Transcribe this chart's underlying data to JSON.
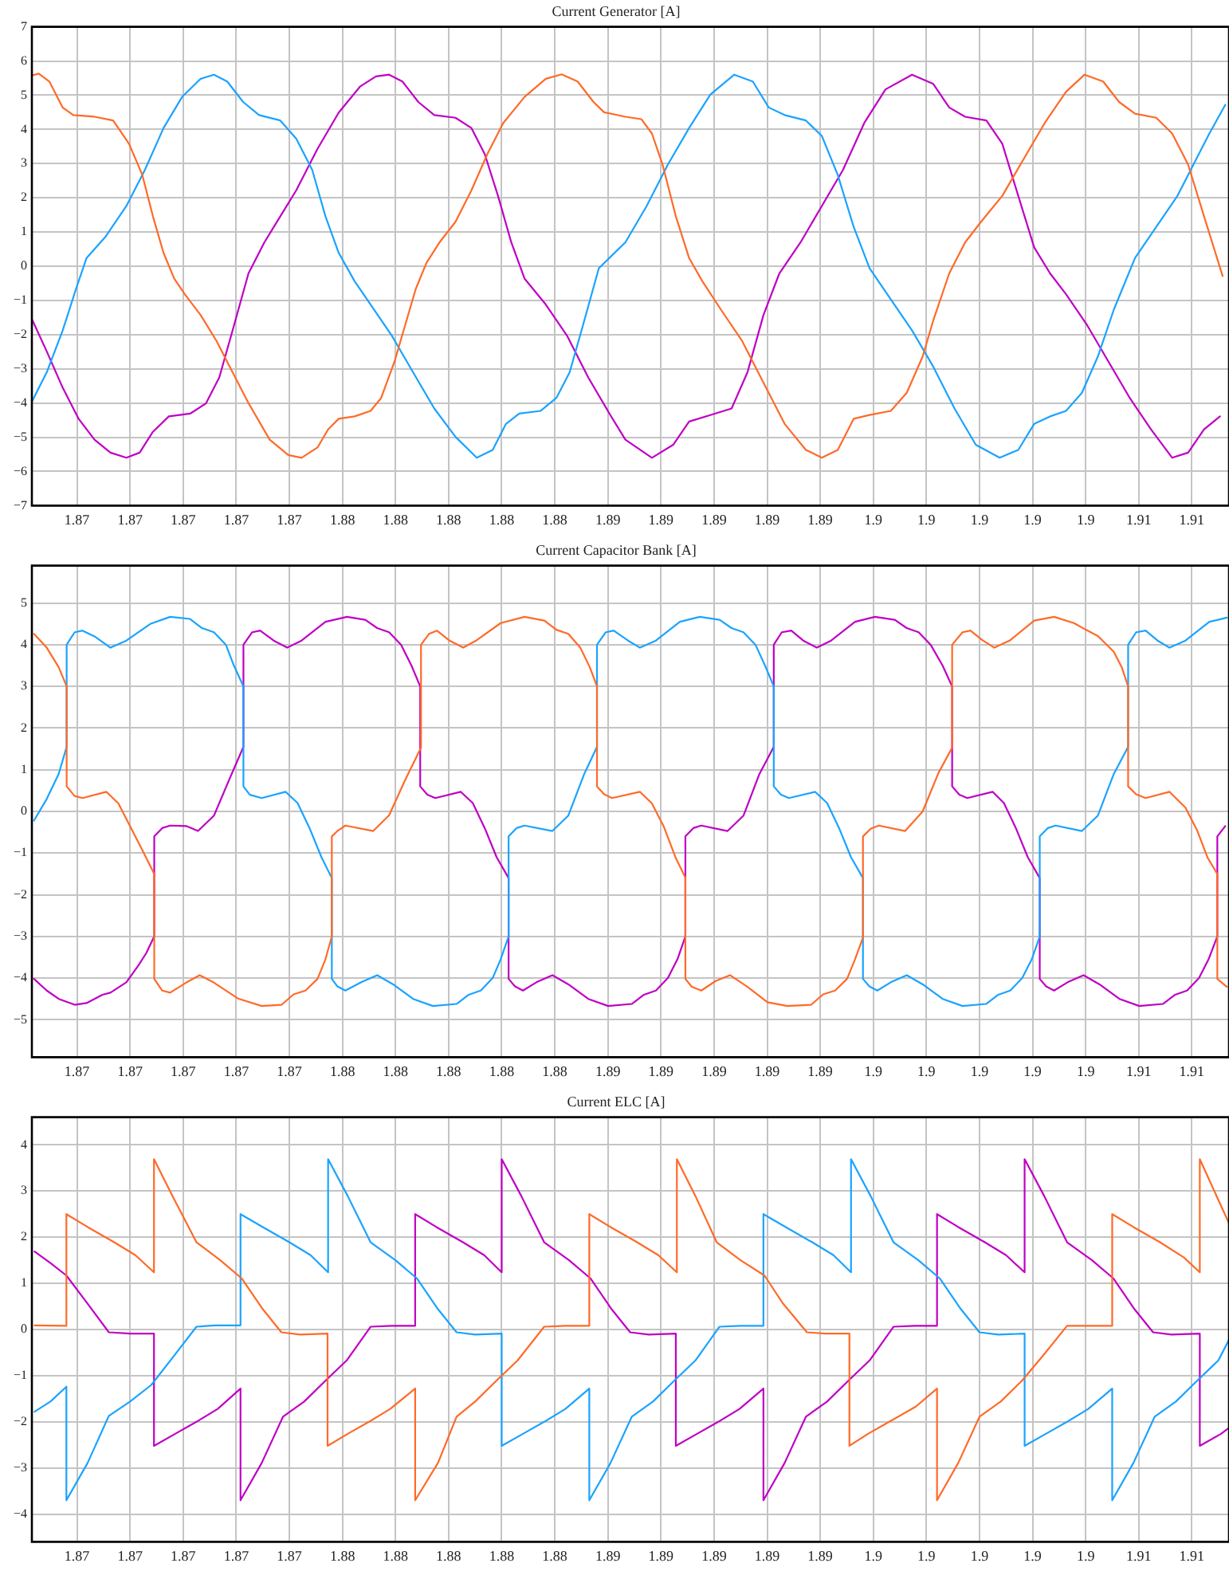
{
  "chart_data": [
    {
      "type": "line",
      "title": "Current Generator [A]",
      "xlim": [
        1.8643,
        1.9094
      ],
      "ylim": [
        -7,
        7
      ],
      "grid": true,
      "xticks": [
        {
          "value": 1.866,
          "label": "1.87"
        },
        {
          "value": 1.868,
          "label": "1.87"
        },
        {
          "value": 1.87,
          "label": "1.87"
        },
        {
          "value": 1.872,
          "label": "1.87"
        },
        {
          "value": 1.874,
          "label": "1.87"
        },
        {
          "value": 1.876,
          "label": "1.88"
        },
        {
          "value": 1.878,
          "label": "1.88"
        },
        {
          "value": 1.88,
          "label": "1.88"
        },
        {
          "value": 1.882,
          "label": "1.88"
        },
        {
          "value": 1.884,
          "label": "1.88"
        },
        {
          "value": 1.886,
          "label": "1.89"
        },
        {
          "value": 1.888,
          "label": "1.89"
        },
        {
          "value": 1.89,
          "label": "1.89"
        },
        {
          "value": 1.892,
          "label": "1.89"
        },
        {
          "value": 1.894,
          "label": "1.89"
        },
        {
          "value": 1.896,
          "label": "1.9"
        },
        {
          "value": 1.898,
          "label": "1.9"
        },
        {
          "value": 1.9,
          "label": "1.9"
        },
        {
          "value": 1.902,
          "label": "1.9"
        },
        {
          "value": 1.904,
          "label": "1.9"
        },
        {
          "value": 1.906,
          "label": "1.91"
        },
        {
          "value": 1.908,
          "label": "1.91"
        }
      ],
      "yticks": [
        {
          "value": -7,
          "label": "−7"
        },
        {
          "value": -6,
          "label": "−6"
        },
        {
          "value": -5,
          "label": "−5"
        },
        {
          "value": -4,
          "label": "−4"
        },
        {
          "value": -3,
          "label": "−3"
        },
        {
          "value": -2,
          "label": "−2"
        },
        {
          "value": -1,
          "label": "−1"
        },
        0,
        1,
        2,
        3,
        4,
        5,
        6,
        7
      ],
      "series": [
        {
          "color": "#ff6a28",
          "x": [
            1.86432,
            1.86456,
            1.86496,
            1.86546,
            1.86586,
            1.86666,
            1.86736,
            1.86796,
            1.86846,
            1.86886,
            1.86926,
            1.86966,
            1.87006,
            1.87066,
            1.87126,
            1.87186,
            1.87246,
            1.87326,
            1.87396,
            1.87446,
            1.87506,
            1.87546,
            1.87586,
            1.87646,
            1.87706,
            1.87746,
            1.87796,
            1.87836,
            1.87876,
            1.87916,
            1.87966,
            1.88026,
            1.88086,
            1.88146,
            1.88206,
            1.88286,
            1.88366,
            1.88426,
            1.88486,
            1.88546,
            1.88586,
            1.88666,
            1.88726,
            1.88766,
            1.88806,
            1.88856,
            1.88906,
            1.88956,
            1.89026,
            1.89106,
            1.89186,
            1.89266,
            1.89346,
            1.89406,
            1.89466,
            1.89526,
            1.89586,
            1.89666,
            1.89726,
            1.89786,
            1.89826,
            1.89886,
            1.89946,
            1.90006,
            1.90086,
            1.90166,
            1.90246,
            1.90326,
            1.90396,
            1.90466,
            1.90526,
            1.90586,
            1.90666,
            1.90726,
            1.90786,
            1.90846,
            1.90916
          ],
          "values": [
            5.58,
            5.63,
            5.4,
            4.64,
            4.42,
            4.37,
            4.26,
            3.58,
            2.67,
            1.46,
            0.39,
            -0.36,
            -0.82,
            -1.43,
            -2.19,
            -3.1,
            -4.0,
            -5.07,
            -5.52,
            -5.6,
            -5.3,
            -4.77,
            -4.46,
            -4.39,
            -4.23,
            -3.85,
            -2.79,
            -1.73,
            -0.67,
            0.09,
            0.7,
            1.3,
            2.22,
            3.28,
            4.19,
            4.95,
            5.48,
            5.61,
            5.4,
            4.8,
            4.5,
            4.37,
            4.3,
            3.88,
            2.97,
            1.46,
            0.24,
            -0.44,
            -1.27,
            -2.19,
            -3.4,
            -4.61,
            -5.37,
            -5.6,
            -5.37,
            -4.46,
            -4.35,
            -4.23,
            -3.7,
            -2.64,
            -1.58,
            -0.21,
            0.7,
            1.3,
            2.06,
            3.13,
            4.19,
            5.1,
            5.6,
            5.4,
            4.8,
            4.46,
            4.34,
            3.88,
            2.97,
            1.46,
            -0.29
          ]
        },
        {
          "color": "#1aa3ff",
          "x": [
            1.86432,
            1.86486,
            1.86546,
            1.86596,
            1.86636,
            1.86706,
            1.86786,
            1.86856,
            1.86926,
            1.86996,
            1.87066,
            1.87116,
            1.87166,
            1.87226,
            1.87286,
            1.87366,
            1.87426,
            1.87486,
            1.87536,
            1.87586,
            1.87646,
            1.87706,
            1.87786,
            1.87866,
            1.87946,
            1.88026,
            1.88106,
            1.88166,
            1.88216,
            1.88266,
            1.88346,
            1.88406,
            1.88456,
            1.88506,
            1.88566,
            1.88666,
            1.88746,
            1.88826,
            1.88906,
            1.88986,
            1.89076,
            1.89146,
            1.89206,
            1.89266,
            1.89346,
            1.89406,
            1.89466,
            1.89526,
            1.89586,
            1.89666,
            1.89746,
            1.89826,
            1.89906,
            1.89986,
            1.90076,
            1.90146,
            1.90206,
            1.90266,
            1.90326,
            1.90386,
            1.90446,
            1.90506,
            1.90586,
            1.90666,
            1.90746,
            1.90806,
            1.90866,
            1.90926
          ],
          "values": [
            -3.93,
            -3.1,
            -1.88,
            -0.67,
            0.24,
            0.85,
            1.76,
            2.82,
            4.04,
            4.95,
            5.48,
            5.6,
            5.4,
            4.8,
            4.42,
            4.26,
            3.73,
            2.82,
            1.46,
            0.39,
            -0.44,
            -1.12,
            -2.03,
            -3.1,
            -4.16,
            -4.99,
            -5.6,
            -5.37,
            -4.61,
            -4.31,
            -4.23,
            -3.85,
            -3.1,
            -1.73,
            -0.06,
            0.7,
            1.76,
            2.97,
            4.04,
            5.02,
            5.6,
            5.4,
            4.64,
            4.42,
            4.26,
            3.81,
            2.67,
            1.15,
            -0.06,
            -0.97,
            -1.88,
            -2.94,
            -4.16,
            -5.22,
            -5.6,
            -5.37,
            -4.61,
            -4.39,
            -4.23,
            -3.7,
            -2.64,
            -1.27,
            0.24,
            1.15,
            2.06,
            2.97,
            3.88,
            4.72
          ]
        },
        {
          "color": "#bf00c4",
          "x": [
            1.86432,
            1.86486,
            1.86546,
            1.86606,
            1.86666,
            1.86726,
            1.86786,
            1.86836,
            1.86886,
            1.86946,
            1.87026,
            1.87086,
            1.87136,
            1.87186,
            1.87246,
            1.87306,
            1.87366,
            1.87426,
            1.87506,
            1.87586,
            1.87666,
            1.87726,
            1.87776,
            1.87826,
            1.87886,
            1.87946,
            1.88026,
            1.88086,
            1.88136,
            1.88186,
            1.88236,
            1.88286,
            1.88366,
            1.88446,
            1.88526,
            1.88606,
            1.88666,
            1.88766,
            1.88846,
            1.88906,
            1.88986,
            1.89066,
            1.89126,
            1.89186,
            1.89246,
            1.89326,
            1.89406,
            1.89486,
            1.89566,
            1.89646,
            1.89746,
            1.89826,
            1.89886,
            1.89946,
            1.90026,
            1.90086,
            1.90146,
            1.90206,
            1.90266,
            1.90326,
            1.90406,
            1.90486,
            1.90566,
            1.90646,
            1.90726,
            1.90786,
            1.90846,
            1.90906
          ],
          "values": [
            -1.58,
            -2.49,
            -3.55,
            -4.46,
            -5.07,
            -5.45,
            -5.6,
            -5.45,
            -4.84,
            -4.39,
            -4.31,
            -4.01,
            -3.25,
            -1.88,
            -0.21,
            0.7,
            1.46,
            2.22,
            3.43,
            4.49,
            5.25,
            5.55,
            5.6,
            5.4,
            4.8,
            4.42,
            4.34,
            4.04,
            3.28,
            2.06,
            0.7,
            -0.36,
            -1.12,
            -2.03,
            -3.25,
            -4.31,
            -5.07,
            -5.6,
            -5.22,
            -4.54,
            -4.35,
            -4.16,
            -3.1,
            -1.43,
            -0.21,
            0.7,
            1.76,
            2.82,
            4.19,
            5.17,
            5.6,
            5.33,
            4.64,
            4.37,
            4.26,
            3.58,
            2.06,
            0.55,
            -0.21,
            -0.82,
            -1.73,
            -2.79,
            -3.85,
            -4.77,
            -5.6,
            -5.45,
            -4.77,
            -4.39
          ]
        }
      ]
    },
    {
      "type": "line",
      "title": "Current Capacitor Bank [A]",
      "xlim": [
        1.8643,
        1.9094
      ],
      "ylim": [
        -5.9,
        5.9
      ],
      "grid": true,
      "xticks": [
        {
          "value": 1.866,
          "label": "1.87"
        },
        {
          "value": 1.868,
          "label": "1.87"
        },
        {
          "value": 1.87,
          "label": "1.87"
        },
        {
          "value": 1.872,
          "label": "1.87"
        },
        {
          "value": 1.874,
          "label": "1.87"
        },
        {
          "value": 1.876,
          "label": "1.88"
        },
        {
          "value": 1.878,
          "label": "1.88"
        },
        {
          "value": 1.88,
          "label": "1.88"
        },
        {
          "value": 1.882,
          "label": "1.88"
        },
        {
          "value": 1.884,
          "label": "1.88"
        },
        {
          "value": 1.886,
          "label": "1.89"
        },
        {
          "value": 1.888,
          "label": "1.89"
        },
        {
          "value": 1.89,
          "label": "1.89"
        },
        {
          "value": 1.892,
          "label": "1.89"
        },
        {
          "value": 1.894,
          "label": "1.89"
        },
        {
          "value": 1.896,
          "label": "1.9"
        },
        {
          "value": 1.898,
          "label": "1.9"
        },
        {
          "value": 1.9,
          "label": "1.9"
        },
        {
          "value": 1.902,
          "label": "1.9"
        },
        {
          "value": 1.904,
          "label": "1.9"
        },
        {
          "value": 1.906,
          "label": "1.91"
        },
        {
          "value": 1.908,
          "label": "1.91"
        }
      ],
      "yticks": [
        {
          "value": -5,
          "label": "−5"
        },
        {
          "value": -4,
          "label": "−4"
        },
        {
          "value": -3,
          "label": "−3"
        },
        {
          "value": -2,
          "label": "−2"
        },
        {
          "value": -1,
          "label": "−1"
        },
        0,
        1,
        2,
        3,
        4,
        5
      ],
      "series": [
        {
          "color": "#ff6a28",
          "x": [
            1.86438,
            1.86486,
            1.86531,
            1.86561,
            1.86561,
            1.86591,
            1.86621,
            1.86711,
            1.86756,
            1.86801,
            1.86846,
            1.86891,
            1.86891,
            1.86921,
            1.86951,
            1.87011,
            1.87062,
            1.87116,
            1.87206,
            1.87296,
            1.87371,
            1.87416,
            1.87461,
            1.87506,
            1.87536,
            1.8756,
            1.8756,
            1.87581,
            1.87611,
            1.87716,
            1.87776,
            1.87836,
            1.87896,
            1.87896,
            1.87926,
            1.87956,
            1.88001,
            1.88055,
            1.88106,
            1.88196,
            1.88286,
            1.88361,
            1.88406,
            1.88451,
            1.88496,
            1.88532,
            1.88559,
            1.88559,
            1.88586,
            1.88616,
            1.88721,
            1.88766,
            1.88811,
            1.88856,
            1.88892,
            1.88892,
            1.88916,
            1.88952,
            1.89006,
            1.8906,
            1.89126,
            1.89201,
            1.89276,
            1.89366,
            1.89411,
            1.89456,
            1.89501,
            1.89531,
            1.89561,
            1.89561,
            1.89591,
            1.89621,
            1.8972,
            1.89786,
            1.89846,
            1.89897,
            1.89897,
            1.89936,
            1.89966,
            1.90011,
            1.90056,
            1.90116,
            1.90206,
            1.90281,
            1.90356,
            1.90401,
            1.90446,
            1.90506,
            1.90536,
            1.9056,
            1.9056,
            1.9059,
            1.90626,
            1.90716,
            1.90776,
            1.90821,
            1.9086,
            1.90896,
            1.90896,
            1.90932
          ],
          "values": [
            4.26,
            3.93,
            3.46,
            3.0,
            0.6,
            0.37,
            0.32,
            0.47,
            0.19,
            -0.37,
            -0.93,
            -1.5,
            -4.02,
            -4.3,
            -4.35,
            -4.11,
            -3.93,
            -4.11,
            -4.49,
            -4.67,
            -4.64,
            -4.39,
            -4.3,
            -4.02,
            -3.55,
            -3.0,
            -0.6,
            -0.47,
            -0.34,
            -0.47,
            -0.09,
            0.75,
            1.53,
            4.0,
            4.26,
            4.34,
            4.11,
            3.93,
            4.11,
            4.52,
            4.67,
            4.58,
            4.36,
            4.26,
            3.93,
            3.46,
            3.0,
            0.6,
            0.41,
            0.32,
            0.47,
            0.19,
            -0.37,
            -1.12,
            -1.59,
            -4.02,
            -4.21,
            -4.3,
            -4.07,
            -3.93,
            -4.21,
            -4.58,
            -4.67,
            -4.64,
            -4.39,
            -4.3,
            -4.02,
            -3.55,
            -3.03,
            -0.6,
            -0.41,
            -0.34,
            -0.47,
            0.0,
            0.93,
            1.53,
            4.0,
            4.3,
            4.34,
            4.11,
            3.93,
            4.11,
            4.58,
            4.67,
            4.52,
            4.36,
            4.21,
            3.83,
            3.46,
            3.0,
            0.6,
            0.41,
            0.32,
            0.47,
            0.09,
            -0.47,
            -1.12,
            -1.5,
            -4.02,
            -4.21
          ]
        },
        {
          "color": "#1aa3ff",
          "x": [
            1.86438,
            1.86486,
            1.86531,
            1.86561,
            1.86561,
            1.86591,
            1.86621,
            1.86666,
            1.86726,
            1.86786,
            1.86876,
            1.86951,
            1.87026,
            1.87071,
            1.87116,
            1.87161,
            1.87191,
            1.87227,
            1.87227,
            1.87251,
            1.87296,
            1.87386,
            1.87431,
            1.87476,
            1.87521,
            1.8756,
            1.8756,
            1.87581,
            1.87611,
            1.87671,
            1.87731,
            1.87791,
            1.87866,
            1.87941,
            1.88031,
            1.88076,
            1.88121,
            1.88166,
            1.88196,
            1.88226,
            1.88226,
            1.88256,
            1.88286,
            1.88391,
            1.88451,
            1.88511,
            1.88559,
            1.88559,
            1.88592,
            1.88622,
            1.88676,
            1.88721,
            1.88781,
            1.88871,
            1.88946,
            1.89021,
            1.89066,
            1.89111,
            1.89156,
            1.89192,
            1.89225,
            1.89225,
            1.89252,
            1.89282,
            1.89381,
            1.89426,
            1.89471,
            1.89516,
            1.89561,
            1.89561,
            1.89585,
            1.89615,
            1.89666,
            1.89726,
            1.89786,
            1.89861,
            1.89936,
            1.90026,
            1.90071,
            1.90116,
            1.90161,
            1.90197,
            1.90227,
            1.90227,
            1.90257,
            1.90287,
            1.90386,
            1.90446,
            1.90506,
            1.9056,
            1.9056,
            1.9059,
            1.90626,
            1.90671,
            1.90716,
            1.90776,
            1.90866,
            1.90932
          ],
          "values": [
            -0.22,
            0.3,
            0.9,
            1.55,
            4.0,
            4.3,
            4.34,
            4.2,
            3.93,
            4.1,
            4.5,
            4.67,
            4.62,
            4.4,
            4.3,
            4.0,
            3.5,
            3.0,
            0.6,
            0.4,
            0.32,
            0.47,
            0.2,
            -0.4,
            -1.1,
            -1.6,
            -4.02,
            -4.2,
            -4.3,
            -4.1,
            -3.93,
            -4.15,
            -4.5,
            -4.67,
            -4.62,
            -4.4,
            -4.3,
            -4.0,
            -3.55,
            -3.0,
            -0.6,
            -0.4,
            -0.34,
            -0.47,
            -0.1,
            0.9,
            1.55,
            4.0,
            4.3,
            4.34,
            4.1,
            3.93,
            4.1,
            4.55,
            4.67,
            4.6,
            4.4,
            4.3,
            4.0,
            3.5,
            3.0,
            0.6,
            0.4,
            0.32,
            0.47,
            0.2,
            -0.4,
            -1.1,
            -1.6,
            -4.02,
            -4.2,
            -4.3,
            -4.1,
            -3.93,
            -4.15,
            -4.5,
            -4.67,
            -4.62,
            -4.4,
            -4.3,
            -4.0,
            -3.55,
            -3.0,
            -0.6,
            -0.4,
            -0.34,
            -0.47,
            -0.1,
            0.9,
            1.55,
            4.0,
            4.3,
            4.34,
            4.1,
            3.93,
            4.1,
            4.55,
            4.65
          ]
        },
        {
          "color": "#bf00c4",
          "x": [
            1.86438,
            1.86486,
            1.86531,
            1.86591,
            1.86636,
            1.86696,
            1.86726,
            1.86786,
            1.86831,
            1.86861,
            1.86891,
            1.86891,
            1.86921,
            1.86951,
            1.87011,
            1.87056,
            1.87116,
            1.87176,
            1.87227,
            1.87227,
            1.8726,
            1.8729,
            1.87341,
            1.87392,
            1.87446,
            1.87536,
            1.87617,
            1.87686,
            1.87731,
            1.87776,
            1.87821,
            1.8786,
            1.87893,
            1.87893,
            1.8792,
            1.8795,
            1.88046,
            1.88091,
            1.88136,
            1.88181,
            1.88226,
            1.88226,
            1.8825,
            1.8828,
            1.88331,
            1.88391,
            1.88451,
            1.88526,
            1.88601,
            1.88691,
            1.88736,
            1.88781,
            1.88826,
            1.88862,
            1.88892,
            1.88892,
            1.88922,
            1.88952,
            1.89051,
            1.89111,
            1.89171,
            1.89225,
            1.89225,
            1.89255,
            1.89291,
            1.89336,
            1.89387,
            1.89441,
            1.89531,
            1.89606,
            1.89681,
            1.89726,
            1.89771,
            1.89816,
            1.89861,
            1.89897,
            1.89897,
            1.89924,
            1.89954,
            1.9005,
            1.90092,
            1.90137,
            1.90182,
            1.90227,
            1.90227,
            1.90251,
            1.90281,
            1.90332,
            1.90392,
            1.90452,
            1.90527,
            1.90602,
            1.90692,
            1.90737,
            1.90782,
            1.90827,
            1.90863,
            1.90896,
            1.90896,
            1.90926
          ],
          "values": [
            -4.02,
            -4.3,
            -4.5,
            -4.64,
            -4.6,
            -4.4,
            -4.35,
            -4.1,
            -3.7,
            -3.4,
            -3.0,
            -0.6,
            -0.4,
            -0.34,
            -0.35,
            -0.47,
            -0.1,
            0.8,
            1.55,
            4.0,
            4.3,
            4.34,
            4.1,
            3.93,
            4.1,
            4.55,
            4.67,
            4.6,
            4.4,
            4.3,
            4.0,
            3.5,
            3.0,
            0.6,
            0.4,
            0.32,
            0.47,
            0.2,
            -0.4,
            -1.1,
            -1.6,
            -4.02,
            -4.2,
            -4.3,
            -4.1,
            -3.93,
            -4.15,
            -4.5,
            -4.67,
            -4.62,
            -4.4,
            -4.3,
            -4.0,
            -3.55,
            -3.0,
            -0.6,
            -0.4,
            -0.34,
            -0.47,
            -0.1,
            0.9,
            1.55,
            4.0,
            4.3,
            4.34,
            4.1,
            3.93,
            4.1,
            4.55,
            4.67,
            4.6,
            4.4,
            4.3,
            4.0,
            3.5,
            3.0,
            0.6,
            0.4,
            0.32,
            0.47,
            0.2,
            -0.4,
            -1.1,
            -1.6,
            -4.02,
            -4.2,
            -4.3,
            -4.1,
            -3.93,
            -4.15,
            -4.5,
            -4.67,
            -4.62,
            -4.4,
            -4.3,
            -4.0,
            -3.55,
            -3.0,
            -0.6,
            -0.35
          ]
        }
      ]
    },
    {
      "type": "line",
      "title": "Current ELC [A]",
      "xlim": [
        1.8643,
        1.9094
      ],
      "ylim": [
        -4.6,
        4.6
      ],
      "grid": true,
      "xticks": [
        {
          "value": 1.866,
          "label": "1.87"
        },
        {
          "value": 1.868,
          "label": "1.87"
        },
        {
          "value": 1.87,
          "label": "1.87"
        },
        {
          "value": 1.872,
          "label": "1.87"
        },
        {
          "value": 1.874,
          "label": "1.87"
        },
        {
          "value": 1.876,
          "label": "1.88"
        },
        {
          "value": 1.878,
          "label": "1.88"
        },
        {
          "value": 1.88,
          "label": "1.88"
        },
        {
          "value": 1.882,
          "label": "1.88"
        },
        {
          "value": 1.884,
          "label": "1.88"
        },
        {
          "value": 1.886,
          "label": "1.89"
        },
        {
          "value": 1.888,
          "label": "1.89"
        },
        {
          "value": 1.89,
          "label": "1.89"
        },
        {
          "value": 1.892,
          "label": "1.89"
        },
        {
          "value": 1.894,
          "label": "1.89"
        },
        {
          "value": 1.896,
          "label": "1.9"
        },
        {
          "value": 1.898,
          "label": "1.9"
        },
        {
          "value": 1.9,
          "label": "1.9"
        },
        {
          "value": 1.902,
          "label": "1.9"
        },
        {
          "value": 1.904,
          "label": "1.9"
        },
        {
          "value": 1.906,
          "label": "1.91"
        },
        {
          "value": 1.908,
          "label": "1.91"
        }
      ],
      "yticks": [
        {
          "value": -4,
          "label": "−4"
        },
        {
          "value": -3,
          "label": "−3"
        },
        {
          "value": -2,
          "label": "−2"
        },
        {
          "value": -1,
          "label": "−1"
        },
        0,
        1,
        2,
        3,
        4
      ],
      "series": [
        {
          "color": "#ff6a28",
          "x": [
            1.8644,
            1.8656,
            1.8656,
            1.8664,
            1.8674,
            1.8682,
            1.8689,
            1.8689,
            1.8696,
            1.8705,
            1.8714,
            1.8722,
            1.873,
            1.8737,
            1.8744,
            1.87544,
            1.87544,
            1.8762,
            1.877,
            1.8778,
            1.87874,
            1.87874,
            1.8796,
            1.8803,
            1.881,
            1.8818,
            1.8826,
            1.8836,
            1.8844,
            1.8853,
            1.8853,
            1.8861,
            1.8871,
            1.8879,
            1.8886,
            1.8886,
            1.8893,
            1.8901,
            1.891,
            1.8919,
            1.8926,
            1.8935,
            1.8942,
            1.8951,
            1.8951,
            1.8958,
            1.8966,
            1.8976,
            1.8984,
            1.8984,
            1.8992,
            1.9,
            1.9008,
            1.9016,
            1.9024,
            1.9033,
            1.9042,
            1.905,
            1.905,
            1.9058,
            1.9068,
            1.9077,
            1.9083,
            1.9083,
            1.9094
          ],
          "values": [
            0.09,
            0.08,
            2.5,
            2.22,
            1.89,
            1.61,
            1.24,
            3.69,
            2.89,
            1.89,
            1.5,
            1.11,
            0.44,
            -0.06,
            -0.11,
            -0.09,
            -2.52,
            -2.26,
            -2.0,
            -1.72,
            -1.28,
            -3.7,
            -2.89,
            -1.89,
            -1.56,
            -1.11,
            -0.67,
            0.06,
            0.08,
            0.08,
            2.5,
            2.22,
            1.89,
            1.61,
            1.24,
            3.69,
            2.89,
            1.89,
            1.5,
            1.17,
            0.56,
            -0.06,
            -0.09,
            -0.09,
            -2.52,
            -2.26,
            -2.0,
            -1.67,
            -1.28,
            -3.7,
            -2.89,
            -1.89,
            -1.56,
            -1.11,
            -0.56,
            0.08,
            0.08,
            0.08,
            2.5,
            2.22,
            1.89,
            1.56,
            1.24,
            3.69,
            2.3
          ]
        },
        {
          "color": "#1aa3ff",
          "x": [
            1.8644,
            1.865,
            1.8656,
            1.8656,
            1.8664,
            1.8672,
            1.868,
            1.8688,
            1.8696,
            1.8705,
            1.8712,
            1.87216,
            1.87216,
            1.873,
            1.874,
            1.8748,
            1.87546,
            1.87546,
            1.8762,
            1.87706,
            1.878,
            1.8788,
            1.8796,
            1.8803,
            1.881,
            1.882,
            1.882,
            1.8828,
            1.8836,
            1.8844,
            1.8853,
            1.8853,
            1.8861,
            1.8869,
            1.8877,
            1.8885,
            1.8893,
            1.8902,
            1.891,
            1.89186,
            1.89186,
            1.8927,
            1.8937,
            1.8945,
            1.89516,
            1.89516,
            1.8959,
            1.89676,
            1.8977,
            1.8985,
            1.8993,
            1.9,
            1.9007,
            1.9017,
            1.9017,
            1.9025,
            1.9033,
            1.9041,
            1.905,
            1.905,
            1.9058,
            1.9066,
            1.9074,
            1.9082,
            1.909,
            1.9094
          ],
          "values": [
            -1.78,
            -1.56,
            -1.24,
            -3.7,
            -2.89,
            -1.87,
            -1.56,
            -1.2,
            -0.61,
            0.06,
            0.09,
            0.09,
            2.5,
            2.22,
            1.89,
            1.61,
            1.24,
            3.69,
            2.89,
            1.89,
            1.5,
            1.11,
            0.44,
            -0.06,
            -0.11,
            -0.09,
            -2.52,
            -2.26,
            -2.0,
            -1.72,
            -1.28,
            -3.7,
            -2.89,
            -1.89,
            -1.56,
            -1.11,
            -0.67,
            0.06,
            0.08,
            0.08,
            2.5,
            2.22,
            1.89,
            1.61,
            1.24,
            3.69,
            2.89,
            1.89,
            1.5,
            1.11,
            0.44,
            -0.06,
            -0.11,
            -0.09,
            -2.52,
            -2.26,
            -2.0,
            -1.72,
            -1.28,
            -3.7,
            -2.89,
            -1.89,
            -1.56,
            -1.11,
            -0.67,
            -0.22
          ]
        },
        {
          "color": "#bf00c4",
          "x": [
            1.8644,
            1.865,
            1.8656,
            1.8664,
            1.8672,
            1.868,
            1.8689,
            1.8689,
            1.8697,
            1.8705,
            1.8713,
            1.87216,
            1.87216,
            1.87296,
            1.87376,
            1.87456,
            1.87536,
            1.87616,
            1.87706,
            1.87786,
            1.87874,
            1.87874,
            1.87954,
            1.88054,
            1.88134,
            1.882,
            1.882,
            1.88274,
            1.8836,
            1.88454,
            1.88534,
            1.88614,
            1.88684,
            1.88754,
            1.88856,
            1.88856,
            1.88936,
            1.89016,
            1.89096,
            1.89186,
            1.89186,
            1.89266,
            1.89346,
            1.89426,
            1.89506,
            1.89586,
            1.89676,
            1.89756,
            1.8984,
            1.8984,
            1.8992,
            1.9002,
            1.901,
            1.9017,
            1.9017,
            1.90244,
            1.9033,
            1.90424,
            1.90504,
            1.90584,
            1.90654,
            1.90724,
            1.9083,
            1.9083,
            1.9091,
            1.9094
          ],
          "values": [
            1.69,
            1.44,
            1.17,
            0.56,
            -0.06,
            -0.09,
            -0.09,
            -2.52,
            -2.26,
            -2.0,
            -1.72,
            -1.28,
            -3.7,
            -2.89,
            -1.89,
            -1.56,
            -1.11,
            -0.67,
            0.06,
            0.08,
            0.08,
            2.5,
            2.22,
            1.89,
            1.61,
            1.24,
            3.69,
            2.89,
            1.89,
            1.5,
            1.11,
            0.44,
            -0.06,
            -0.11,
            -0.09,
            -2.52,
            -2.26,
            -2.0,
            -1.72,
            -1.28,
            -3.7,
            -2.89,
            -1.89,
            -1.56,
            -1.11,
            -0.67,
            0.06,
            0.08,
            0.08,
            2.5,
            2.22,
            1.89,
            1.61,
            1.24,
            3.69,
            2.89,
            1.89,
            1.5,
            1.11,
            0.44,
            -0.06,
            -0.11,
            -0.09,
            -2.52,
            -2.26,
            -2.13
          ]
        }
      ]
    }
  ]
}
